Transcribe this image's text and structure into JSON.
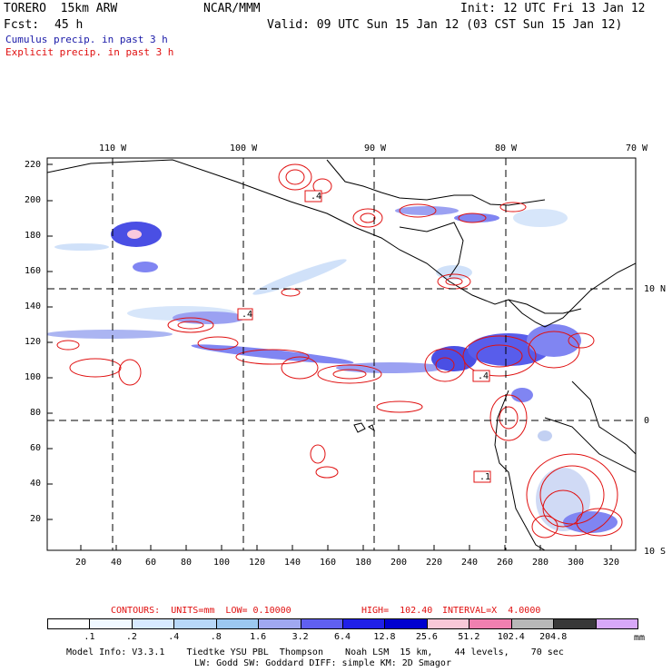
{
  "header": {
    "model": "TORERO  15km ARW",
    "org": "NCAR/MMM",
    "init": "Init: 12 UTC Fri 13 Jan 12",
    "fcst_label": "Fcst:",
    "fcst_value": "45 h",
    "valid": "Valid: 09 UTC Sun 15 Jan 12 (03 CST Sun 15 Jan 12)",
    "line1": "Cumulus precip. in past 3 h",
    "line2": "Explicit precip. in past 3 h",
    "line1_color": "#1a1aa8",
    "line2_color": "#e01010"
  },
  "map": {
    "top_lon_labels": [
      "110 W",
      "100 W",
      "90 W",
      "80 W",
      "70 W"
    ],
    "right_lat_labels": [
      "10 N",
      "0",
      "10 S"
    ],
    "left_y_ticks": [
      "220",
      "200",
      "180",
      "160",
      "140",
      "120",
      "100",
      "80",
      "60",
      "40",
      "20"
    ],
    "bottom_x_ticks": [
      "20",
      "40",
      "60",
      "80",
      "100",
      "120",
      "140",
      "160",
      "180",
      "200",
      "220",
      "240",
      "260",
      "280",
      "300",
      "320"
    ],
    "box_labels": [
      ".4",
      ".4",
      ".4",
      ".1"
    ]
  },
  "contours_line": {
    "units_text": "CONTOURS:  UNITS=mm  LOW= 0.10000",
    "high_text": "HIGH=  102.40",
    "interval_text": "INTERVAL=X  4.0000",
    "color": "#e01010"
  },
  "legend": {
    "labels": [
      ".1",
      ".2",
      ".4",
      ".8",
      "1.6",
      "3.2",
      "6.4",
      "12.8",
      "25.6",
      "51.2",
      "102.4",
      "204.8"
    ],
    "unit": "mm",
    "colors": [
      "#ffffff",
      "#f0f8ff",
      "#d8eaff",
      "#b8d8f8",
      "#9cc8f0",
      "#a0a8f0",
      "#6060f0",
      "#2020e8",
      "#0000d0",
      "#f8c8d8",
      "#f080b0",
      "#b8b8b8",
      "#383838",
      "#d8a8f8"
    ]
  },
  "footer": {
    "line1": "Model Info: V3.3.1    Tiedtke YSU PBL  Thompson    Noah LSM  15 km,    44 levels,    70 sec",
    "line2": "LW: Godd SW: Goddard DIFF: simple KM: 2D Smagor"
  }
}
